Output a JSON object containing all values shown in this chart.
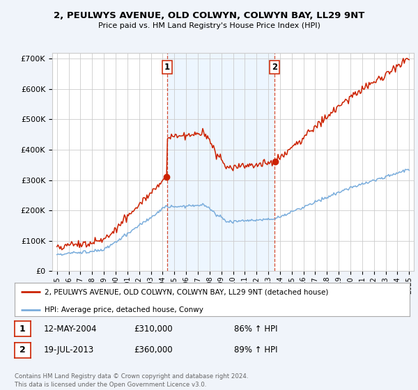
{
  "title": "2, PEULWYS AVENUE, OLD COLWYN, COLWYN BAY, LL29 9NT",
  "subtitle": "Price paid vs. HM Land Registry's House Price Index (HPI)",
  "red_label": "2, PEULWYS AVENUE, OLD COLWYN, COLWYN BAY, LL29 9NT (detached house)",
  "blue_label": "HPI: Average price, detached house, Conwy",
  "transaction1_date": "12-MAY-2004",
  "transaction1_price": "£310,000",
  "transaction1_hpi": "86% ↑ HPI",
  "transaction2_date": "19-JUL-2013",
  "transaction2_price": "£360,000",
  "transaction2_hpi": "89% ↑ HPI",
  "footer": "Contains HM Land Registry data © Crown copyright and database right 2024.\nThis data is licensed under the Open Government Licence v3.0.",
  "bg_color": "#f0f4fa",
  "plot_bg_color": "#ffffff",
  "red_color": "#cc2200",
  "blue_color": "#7aaddc",
  "vline_color": "#cc2200",
  "shade_color": "#ddeeff",
  "grid_color": "#cccccc",
  "ylim_min": 0,
  "ylim_max": 720000,
  "t1_year": 2004.37,
  "t2_year": 2013.55,
  "t1_price": 310000,
  "t2_price": 360000
}
